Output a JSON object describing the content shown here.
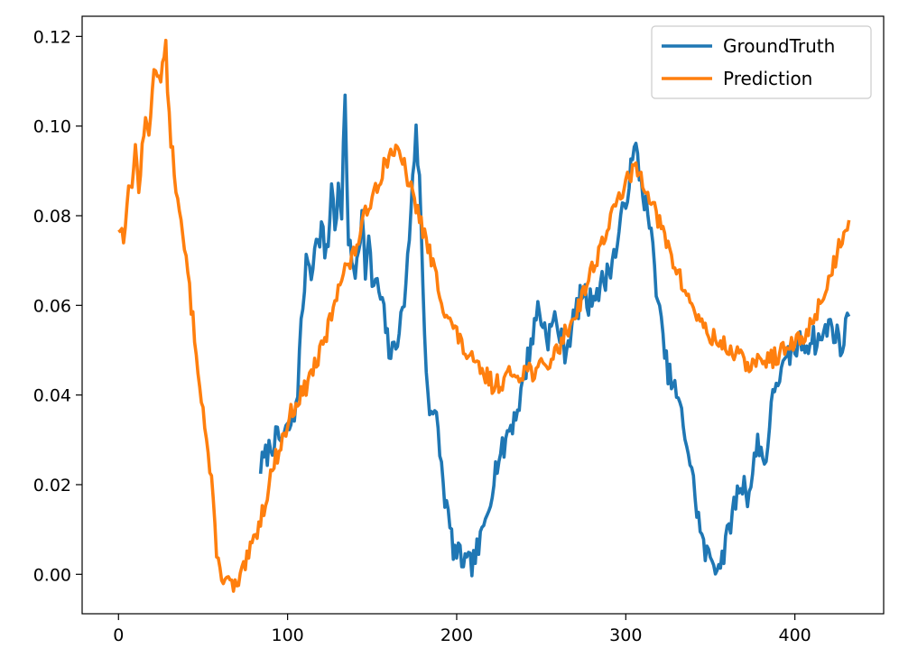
{
  "chart_data": {
    "type": "line",
    "title": "",
    "xlabel": "",
    "ylabel": "",
    "xlim": [
      -21.5,
      452.5
    ],
    "ylim": [
      -0.0088,
      0.1245
    ],
    "x_ticks": [
      0,
      100,
      200,
      300,
      400
    ],
    "x_tick_labels": [
      "0",
      "100",
      "200",
      "300",
      "400"
    ],
    "y_ticks": [
      0.0,
      0.02,
      0.04,
      0.06,
      0.08,
      0.1,
      0.12
    ],
    "y_tick_labels": [
      "0.00",
      "0.02",
      "0.04",
      "0.06",
      "0.08",
      "0.10",
      "0.12"
    ],
    "grid": false,
    "legend_position": "top-right",
    "prediction_anchors": [
      [
        0,
        0.0775
      ],
      [
        3,
        0.0755
      ],
      [
        5,
        0.083
      ],
      [
        8,
        0.088
      ],
      [
        10,
        0.095
      ],
      [
        12,
        0.086
      ],
      [
        14,
        0.094
      ],
      [
        16,
        0.101
      ],
      [
        18,
        0.099
      ],
      [
        20,
        0.108
      ],
      [
        22,
        0.114
      ],
      [
        24,
        0.111
      ],
      [
        26,
        0.113
      ],
      [
        28,
        0.117
      ],
      [
        30,
        0.101
      ],
      [
        33,
        0.09
      ],
      [
        36,
        0.08
      ],
      [
        40,
        0.07
      ],
      [
        43,
        0.06
      ],
      [
        46,
        0.05
      ],
      [
        49,
        0.04
      ],
      [
        52,
        0.03
      ],
      [
        55,
        0.02
      ],
      [
        57,
        0.01
      ],
      [
        59,
        0.002
      ],
      [
        62,
        -0.0005
      ],
      [
        65,
        -0.002
      ],
      [
        68,
        -0.0028
      ],
      [
        71,
        -0.0028
      ],
      [
        74,
        0.001
      ],
      [
        78,
        0.005
      ],
      [
        82,
        0.01
      ],
      [
        86,
        0.015
      ],
      [
        90,
        0.022
      ],
      [
        94,
        0.027
      ],
      [
        98,
        0.031
      ],
      [
        102,
        0.036
      ],
      [
        106,
        0.039
      ],
      [
        110,
        0.041
      ],
      [
        114,
        0.045
      ],
      [
        118,
        0.048
      ],
      [
        122,
        0.052
      ],
      [
        126,
        0.058
      ],
      [
        130,
        0.065
      ],
      [
        134,
        0.068
      ],
      [
        138,
        0.07
      ],
      [
        142,
        0.075
      ],
      [
        146,
        0.08
      ],
      [
        150,
        0.085
      ],
      [
        154,
        0.088
      ],
      [
        158,
        0.092
      ],
      [
        162,
        0.095
      ],
      [
        166,
        0.093
      ],
      [
        170,
        0.09
      ],
      [
        174,
        0.084
      ],
      [
        178,
        0.08
      ],
      [
        182,
        0.074
      ],
      [
        186,
        0.069
      ],
      [
        190,
        0.063
      ],
      [
        194,
        0.058
      ],
      [
        198,
        0.055
      ],
      [
        202,
        0.052
      ],
      [
        206,
        0.049
      ],
      [
        210,
        0.047
      ],
      [
        214,
        0.045
      ],
      [
        218,
        0.044
      ],
      [
        222,
        0.042
      ],
      [
        226,
        0.043
      ],
      [
        230,
        0.044
      ],
      [
        234,
        0.045
      ],
      [
        238,
        0.045
      ],
      [
        242,
        0.046
      ],
      [
        246,
        0.045
      ],
      [
        250,
        0.046
      ],
      [
        254,
        0.047
      ],
      [
        258,
        0.049
      ],
      [
        262,
        0.052
      ],
      [
        266,
        0.055
      ],
      [
        270,
        0.058
      ],
      [
        274,
        0.062
      ],
      [
        278,
        0.066
      ],
      [
        282,
        0.07
      ],
      [
        286,
        0.074
      ],
      [
        290,
        0.078
      ],
      [
        294,
        0.082
      ],
      [
        298,
        0.086
      ],
      [
        302,
        0.088
      ],
      [
        306,
        0.091
      ],
      [
        310,
        0.088
      ],
      [
        314,
        0.085
      ],
      [
        318,
        0.08
      ],
      [
        322,
        0.076
      ],
      [
        326,
        0.072
      ],
      [
        330,
        0.068
      ],
      [
        334,
        0.064
      ],
      [
        338,
        0.061
      ],
      [
        342,
        0.058
      ],
      [
        346,
        0.055
      ],
      [
        350,
        0.053
      ],
      [
        354,
        0.052
      ],
      [
        358,
        0.051
      ],
      [
        362,
        0.05
      ],
      [
        366,
        0.049
      ],
      [
        370,
        0.047
      ],
      [
        374,
        0.047
      ],
      [
        378,
        0.047
      ],
      [
        382,
        0.048
      ],
      [
        386,
        0.048
      ],
      [
        390,
        0.049
      ],
      [
        394,
        0.05
      ],
      [
        398,
        0.051
      ],
      [
        402,
        0.052
      ],
      [
        406,
        0.053
      ],
      [
        410,
        0.056
      ],
      [
        414,
        0.06
      ],
      [
        418,
        0.063
      ],
      [
        422,
        0.068
      ],
      [
        426,
        0.073
      ],
      [
        430,
        0.078
      ],
      [
        432,
        0.079
      ]
    ],
    "groundtruth_anchors": [
      [
        84,
        0.024
      ],
      [
        88,
        0.027
      ],
      [
        92,
        0.03
      ],
      [
        96,
        0.03
      ],
      [
        100,
        0.032
      ],
      [
        104,
        0.035
      ],
      [
        106,
        0.042
      ],
      [
        108,
        0.055
      ],
      [
        110,
        0.065
      ],
      [
        112,
        0.072
      ],
      [
        114,
        0.066
      ],
      [
        116,
        0.075
      ],
      [
        118,
        0.073
      ],
      [
        120,
        0.078
      ],
      [
        122,
        0.072
      ],
      [
        124,
        0.074
      ],
      [
        126,
        0.087
      ],
      [
        128,
        0.078
      ],
      [
        130,
        0.085
      ],
      [
        132,
        0.08
      ],
      [
        134,
        0.107
      ],
      [
        136,
        0.075
      ],
      [
        138,
        0.069
      ],
      [
        140,
        0.068
      ],
      [
        142,
        0.074
      ],
      [
        144,
        0.08
      ],
      [
        146,
        0.068
      ],
      [
        148,
        0.074
      ],
      [
        150,
        0.065
      ],
      [
        152,
        0.065
      ],
      [
        154,
        0.063
      ],
      [
        156,
        0.06
      ],
      [
        158,
        0.055
      ],
      [
        160,
        0.05
      ],
      [
        162,
        0.049
      ],
      [
        164,
        0.052
      ],
      [
        166,
        0.055
      ],
      [
        168,
        0.058
      ],
      [
        170,
        0.065
      ],
      [
        172,
        0.075
      ],
      [
        174,
        0.09
      ],
      [
        176,
        0.098
      ],
      [
        178,
        0.088
      ],
      [
        180,
        0.065
      ],
      [
        182,
        0.045
      ],
      [
        184,
        0.038
      ],
      [
        186,
        0.036
      ],
      [
        188,
        0.034
      ],
      [
        190,
        0.028
      ],
      [
        192,
        0.02
      ],
      [
        194,
        0.015
      ],
      [
        196,
        0.01
      ],
      [
        198,
        0.006
      ],
      [
        200,
        0.004
      ],
      [
        202,
        0.004
      ],
      [
        204,
        0.003
      ],
      [
        206,
        0.002
      ],
      [
        208,
        0.002
      ],
      [
        210,
        0.003
      ],
      [
        212,
        0.005
      ],
      [
        214,
        0.007
      ],
      [
        216,
        0.01
      ],
      [
        218,
        0.014
      ],
      [
        220,
        0.018
      ],
      [
        222,
        0.022
      ],
      [
        224,
        0.025
      ],
      [
        226,
        0.027
      ],
      [
        228,
        0.028
      ],
      [
        230,
        0.032
      ],
      [
        232,
        0.033
      ],
      [
        234,
        0.035
      ],
      [
        236,
        0.037
      ],
      [
        238,
        0.04
      ],
      [
        240,
        0.044
      ],
      [
        242,
        0.048
      ],
      [
        244,
        0.052
      ],
      [
        246,
        0.055
      ],
      [
        248,
        0.06
      ],
      [
        250,
        0.057
      ],
      [
        252,
        0.055
      ],
      [
        254,
        0.053
      ],
      [
        256,
        0.055
      ],
      [
        258,
        0.057
      ],
      [
        260,
        0.055
      ],
      [
        262,
        0.052
      ],
      [
        264,
        0.05
      ],
      [
        266,
        0.052
      ],
      [
        268,
        0.055
      ],
      [
        270,
        0.058
      ],
      [
        272,
        0.06
      ],
      [
        274,
        0.063
      ],
      [
        276,
        0.062
      ],
      [
        278,
        0.06
      ],
      [
        280,
        0.062
      ],
      [
        282,
        0.064
      ],
      [
        284,
        0.063
      ],
      [
        286,
        0.065
      ],
      [
        288,
        0.066
      ],
      [
        290,
        0.068
      ],
      [
        292,
        0.07
      ],
      [
        294,
        0.072
      ],
      [
        296,
        0.076
      ],
      [
        298,
        0.08
      ],
      [
        300,
        0.084
      ],
      [
        302,
        0.088
      ],
      [
        304,
        0.092
      ],
      [
        306,
        0.095
      ],
      [
        308,
        0.09
      ],
      [
        310,
        0.086
      ],
      [
        312,
        0.082
      ],
      [
        314,
        0.078
      ],
      [
        316,
        0.072
      ],
      [
        318,
        0.065
      ],
      [
        320,
        0.058
      ],
      [
        322,
        0.052
      ],
      [
        324,
        0.047
      ],
      [
        326,
        0.044
      ],
      [
        328,
        0.042
      ],
      [
        330,
        0.04
      ],
      [
        332,
        0.037
      ],
      [
        334,
        0.033
      ],
      [
        336,
        0.03
      ],
      [
        338,
        0.025
      ],
      [
        340,
        0.02
      ],
      [
        342,
        0.015
      ],
      [
        344,
        0.01
      ],
      [
        346,
        0.006
      ],
      [
        348,
        0.004
      ],
      [
        350,
        0.004
      ],
      [
        352,
        0.003
      ],
      [
        354,
        0.002
      ],
      [
        356,
        0.003
      ],
      [
        358,
        0.005
      ],
      [
        360,
        0.008
      ],
      [
        362,
        0.012
      ],
      [
        364,
        0.015
      ],
      [
        366,
        0.018
      ],
      [
        368,
        0.02
      ],
      [
        370,
        0.02
      ],
      [
        372,
        0.018
      ],
      [
        374,
        0.02
      ],
      [
        376,
        0.025
      ],
      [
        378,
        0.03
      ],
      [
        380,
        0.028
      ],
      [
        382,
        0.024
      ],
      [
        384,
        0.03
      ],
      [
        386,
        0.036
      ],
      [
        388,
        0.042
      ],
      [
        390,
        0.044
      ],
      [
        392,
        0.045
      ],
      [
        394,
        0.046
      ],
      [
        396,
        0.048
      ],
      [
        398,
        0.05
      ],
      [
        400,
        0.05
      ],
      [
        402,
        0.051
      ],
      [
        404,
        0.052
      ],
      [
        406,
        0.051
      ],
      [
        408,
        0.052
      ],
      [
        410,
        0.053
      ],
      [
        412,
        0.052
      ],
      [
        414,
        0.052
      ],
      [
        416,
        0.053
      ],
      [
        418,
        0.054
      ],
      [
        420,
        0.056
      ],
      [
        422,
        0.055
      ],
      [
        424,
        0.054
      ],
      [
        426,
        0.052
      ],
      [
        428,
        0.05
      ],
      [
        430,
        0.055
      ],
      [
        432,
        0.0575
      ]
    ],
    "series": [
      {
        "name": "GroundTruth",
        "color": "#1f77b4",
        "noise": 0.003,
        "seed": 7
      },
      {
        "name": "Prediction",
        "color": "#ff7f0e",
        "noise": 0.0022,
        "seed": 13
      }
    ]
  }
}
